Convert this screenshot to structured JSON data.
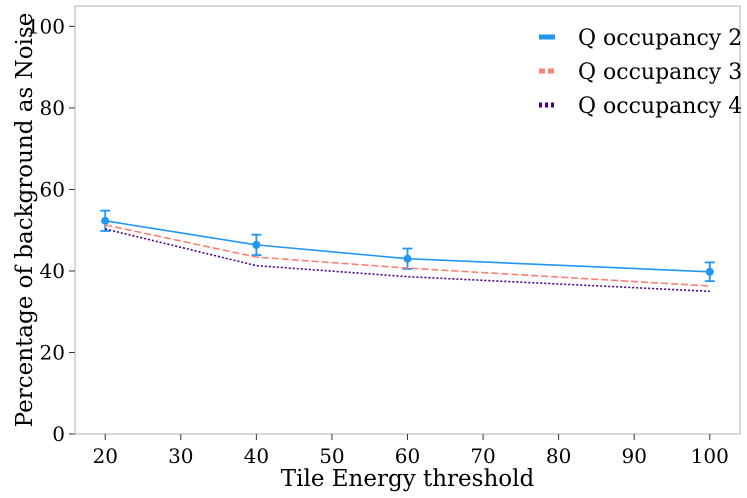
{
  "chart_data": {
    "type": "line",
    "title": "",
    "xlabel": "Tile Energy threshold",
    "ylabel": "Percentage of background as Noise",
    "xlim": [
      16,
      104
    ],
    "ylim": [
      0,
      105
    ],
    "xticks": [
      20,
      30,
      40,
      50,
      60,
      70,
      80,
      90,
      100
    ],
    "yticks": [
      0,
      20,
      40,
      60,
      80,
      100
    ],
    "grid": false,
    "legend_position": "top-right",
    "x": [
      20,
      40,
      60,
      100
    ],
    "series": [
      {
        "name": "Q occupancy 2",
        "values": [
          52.3,
          46.4,
          43.0,
          39.8
        ],
        "errors": [
          2.5,
          2.5,
          2.5,
          2.3
        ],
        "color": "#2196f3",
        "dash": "solid",
        "markers": true
      },
      {
        "name": "Q occupancy 3",
        "values": [
          51.3,
          43.4,
          40.7,
          36.3
        ],
        "color": "#fa8072",
        "dash": "dashed",
        "markers": false
      },
      {
        "name": "Q occupancy 4",
        "values": [
          50.3,
          41.3,
          38.6,
          35.0
        ],
        "color": "#4b0082",
        "dash": "dotted",
        "markers": false
      }
    ]
  }
}
